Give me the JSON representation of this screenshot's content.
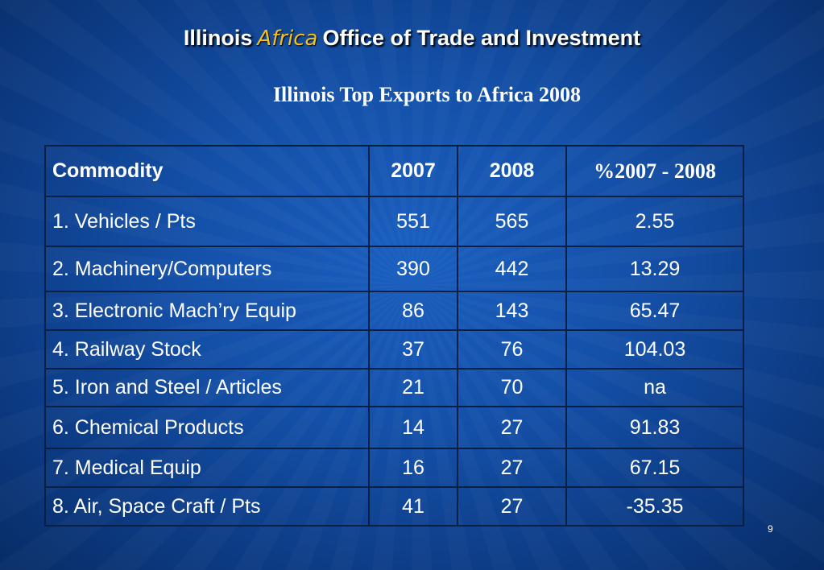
{
  "slide": {
    "title_part1": "Illinois",
    "title_accent": "Africa",
    "title_part2": "Office of Trade and Investment",
    "subtitle": "Illinois Top Exports to Africa 2008",
    "page_number": "9"
  },
  "table": {
    "headers": [
      "Commodity",
      "2007",
      "2008",
      "%2007 - 2008"
    ],
    "rows": [
      [
        "1. Vehicles / Pts",
        "551",
        "565",
        "2.55"
      ],
      [
        "2. Machinery/Computers",
        "390",
        "442",
        "13.29"
      ],
      [
        "3. Electronic Mach’ry Equip",
        "86",
        "143",
        "65.47"
      ],
      [
        "4. Railway Stock",
        "37",
        "76",
        "104.03"
      ],
      [
        "5. Iron and Steel / Articles",
        "21",
        "70",
        "na"
      ],
      [
        "6. Chemical Products",
        "14",
        "27",
        "91.83"
      ],
      [
        "7. Medical Equip",
        "16",
        "27",
        "67.15"
      ],
      [
        "8. Air, Space Craft / Pts",
        "41",
        "27",
        "-35.35"
      ]
    ]
  },
  "colors": {
    "background": "#1450a8",
    "accent_africa": "#f2c21b",
    "table_border": "#0a1f44",
    "text": "#ffffff"
  }
}
